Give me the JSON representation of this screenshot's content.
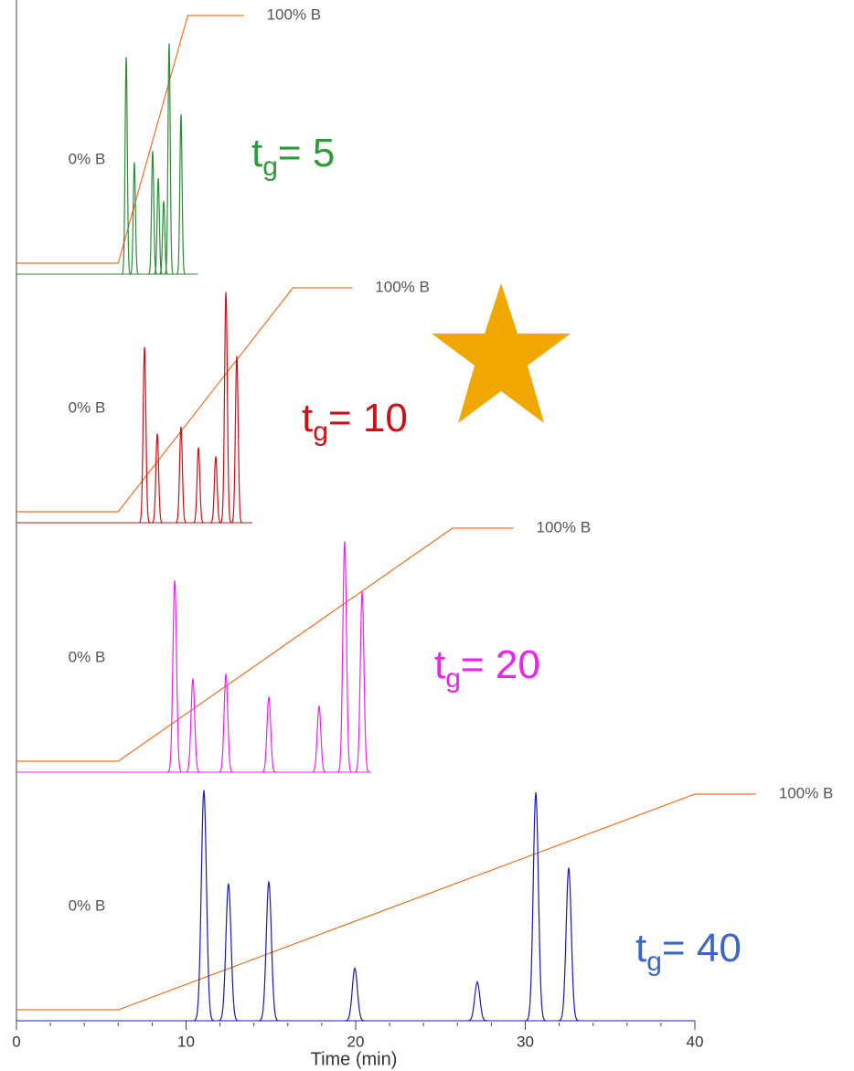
{
  "chart_data": {
    "type": "chromatogram",
    "xlabel": "Time (min)",
    "xlim": [
      0,
      40
    ],
    "xticks": [
      0,
      10,
      20,
      30,
      40
    ],
    "xticks_minor": [
      2,
      4,
      6,
      8,
      12,
      14,
      16,
      18,
      22,
      24,
      26,
      28,
      32,
      34,
      36,
      38
    ],
    "gradient_color": "#f07020",
    "panels": [
      {
        "label": [
          "t",
          "g",
          "= 5"
        ],
        "color": "#2e8b3a",
        "label_color": "#2e9a3a",
        "zero_label": "0% B",
        "full_label": "100% B",
        "trace_end": 10.7,
        "gradient": {
          "x": [
            0,
            6,
            10.1,
            13.4
          ],
          "values": [
            0,
            0,
            100,
            100
          ]
        },
        "peaks": {
          "x": [
            6.47,
            6.95,
            8.03,
            8.36,
            8.68,
            9.0,
            9.7
          ],
          "values": [
            95,
            49,
            54,
            42,
            32,
            101,
            70
          ]
        }
      },
      {
        "label": [
          "t",
          "g",
          "= 10"
        ],
        "color": "#cc1018",
        "label_color": "#cc1018",
        "zero_label": "0% B",
        "full_label": "100% B",
        "trace_end": 13.9,
        "gradient": {
          "x": [
            0,
            6,
            16.3,
            19.8
          ],
          "values": [
            0,
            0,
            100,
            100
          ]
        },
        "peaks": {
          "x": [
            7.55,
            8.3,
            9.7,
            10.73,
            11.75,
            12.35,
            12.99
          ],
          "values": [
            77,
            39,
            42,
            33,
            29,
            101,
            73
          ]
        }
      },
      {
        "label": [
          "t",
          "g",
          "= 20"
        ],
        "color": "#ee22ee",
        "label_color": "#ee22ee",
        "zero_label": "0% B",
        "full_label": "100% B",
        "trace_end": 20.9,
        "gradient": {
          "x": [
            0,
            6,
            25.7,
            29.3
          ],
          "values": [
            0,
            0,
            100,
            100
          ]
        },
        "peaks": {
          "x": [
            9.33,
            10.4,
            12.35,
            14.88,
            17.84,
            19.35,
            20.38
          ],
          "values": [
            84,
            41,
            43,
            33,
            29,
            101,
            79
          ]
        }
      },
      {
        "label": [
          "t",
          "g",
          "= 40"
        ],
        "color": "#1a1ab0",
        "label_color": "#3a66cc",
        "zero_label": "0% B",
        "full_label": "100% B",
        "trace_end": 40,
        "gradient": {
          "x": [
            0,
            6,
            40,
            43.6
          ],
          "values": [
            0,
            0,
            100,
            100
          ]
        },
        "peaks": {
          "x": [
            11.05,
            12.5,
            14.88,
            19.95,
            27.17,
            30.62,
            32.56
          ],
          "values": [
            101,
            60,
            61,
            23,
            17,
            100,
            67
          ]
        }
      }
    ]
  }
}
